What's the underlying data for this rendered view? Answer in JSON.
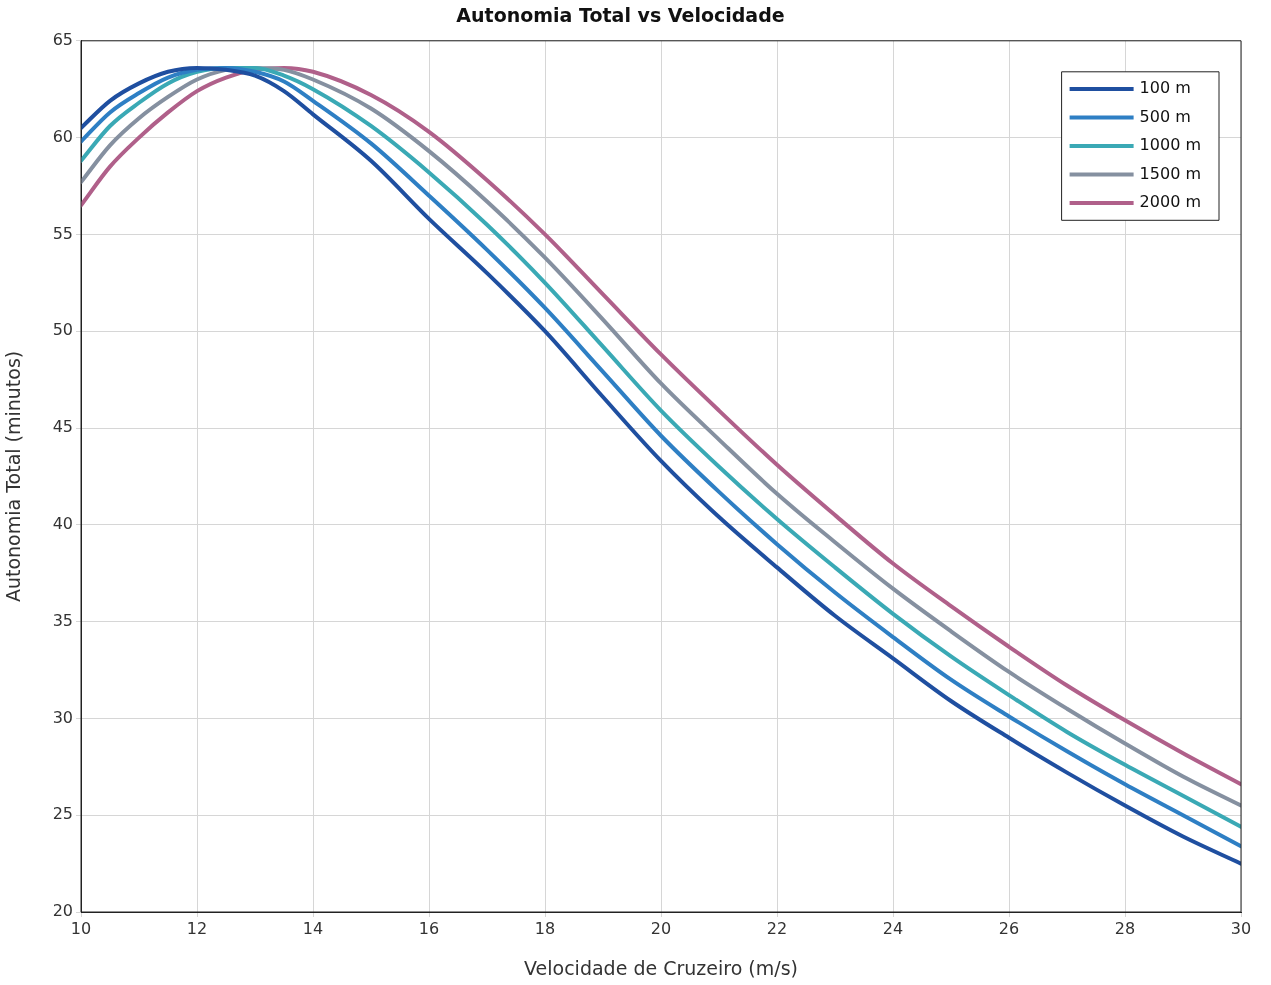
{
  "chart_data": {
    "type": "line",
    "title": "Autonomia Total vs Velocidade",
    "xlabel": "Velocidade de Cruzeiro (m/s)",
    "ylabel": "Autonomia Total (minutos)",
    "x": [
      10,
      10.5,
      11,
      11.5,
      12,
      12.5,
      13,
      13.5,
      14,
      15,
      16,
      17,
      18,
      19,
      20,
      21,
      22,
      23,
      24,
      25,
      26,
      27,
      28,
      29,
      30
    ],
    "series": [
      {
        "name": "100 m",
        "color": "#1f4fa0",
        "values": [
          60.5,
          61.9,
          62.8,
          63.4,
          63.6,
          63.5,
          63.2,
          62.4,
          61.2,
          58.8,
          55.8,
          53.0,
          50.0,
          46.6,
          43.3,
          40.4,
          37.8,
          35.3,
          33.1,
          30.9,
          29.0,
          27.2,
          25.5,
          23.9,
          22.5
        ]
      },
      {
        "name": "500 m",
        "color": "#2e7fc4",
        "values": [
          59.8,
          61.3,
          62.3,
          63.1,
          63.5,
          63.6,
          63.4,
          62.9,
          61.9,
          59.7,
          57.0,
          54.2,
          51.2,
          47.9,
          44.6,
          41.7,
          39.0,
          36.5,
          34.2,
          32.0,
          30.1,
          28.3,
          26.6,
          25.0,
          23.4
        ]
      },
      {
        "name": "1000 m",
        "color": "#3aa9b5",
        "values": [
          58.8,
          60.6,
          61.8,
          62.8,
          63.4,
          63.6,
          63.6,
          63.2,
          62.5,
          60.6,
          58.2,
          55.5,
          52.5,
          49.2,
          45.9,
          43.0,
          40.3,
          37.8,
          35.4,
          33.2,
          31.2,
          29.3,
          27.6,
          26.0,
          24.4
        ]
      },
      {
        "name": "1500 m",
        "color": "#8590a0",
        "values": [
          57.7,
          59.6,
          61.0,
          62.1,
          63.0,
          63.5,
          63.6,
          63.5,
          63.0,
          61.5,
          59.3,
          56.7,
          53.8,
          50.6,
          47.3,
          44.4,
          41.6,
          39.1,
          36.7,
          34.5,
          32.4,
          30.5,
          28.7,
          27.0,
          25.5
        ]
      },
      {
        "name": "2000 m",
        "color": "#b0608a",
        "values": [
          56.5,
          58.5,
          60.0,
          61.3,
          62.4,
          63.1,
          63.5,
          63.6,
          63.4,
          62.2,
          60.3,
          57.8,
          55.0,
          51.9,
          48.8,
          45.9,
          43.1,
          40.5,
          38.0,
          35.8,
          33.7,
          31.7,
          29.9,
          28.2,
          26.6
        ]
      }
    ],
    "xlim": [
      10,
      30
    ],
    "xticks": [
      10,
      12,
      14,
      16,
      18,
      20,
      22,
      24,
      26,
      28,
      30
    ],
    "ylim": [
      20,
      65
    ],
    "yticks": [
      20,
      25,
      30,
      35,
      40,
      45,
      50,
      55,
      60,
      65
    ],
    "grid": true,
    "legend": "top right",
    "marker": "none",
    "line_style": "solid"
  }
}
